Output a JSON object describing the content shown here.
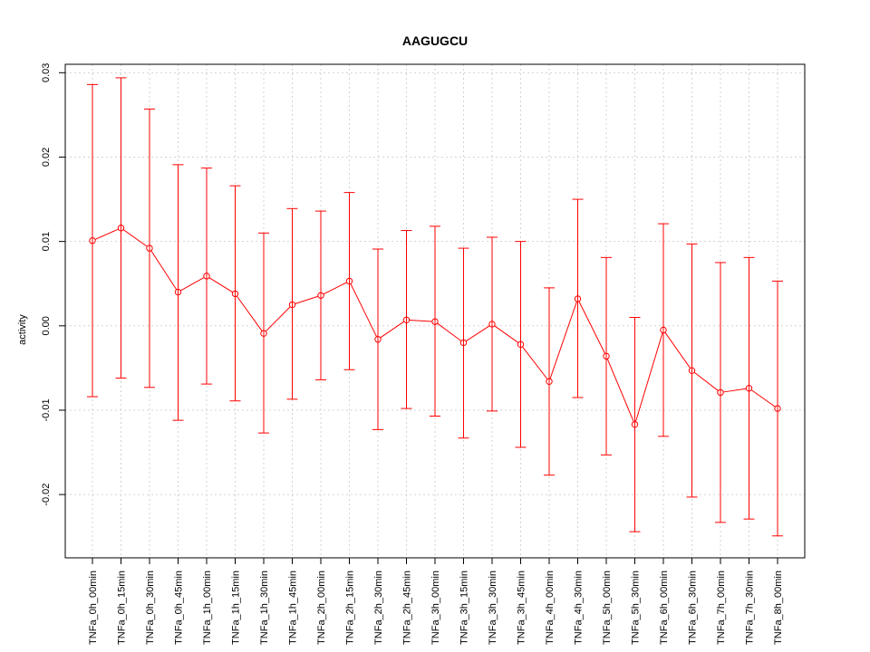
{
  "chart_data": {
    "type": "line",
    "title": "AAGUGCU",
    "xlabel": "",
    "ylabel": "activity",
    "ylim": [
      -0.0275,
      0.031
    ],
    "yticks": [
      -0.02,
      -0.01,
      0.0,
      0.01,
      0.02,
      0.03
    ],
    "ytick_labels": [
      "-0.02",
      "-0.01",
      "0.00",
      "0.01",
      "0.02",
      "0.03"
    ],
    "grid": true,
    "color": "#ff0000",
    "categories": [
      "TNFa_0h_00min",
      "TNFa_0h_15min",
      "TNFa_0h_30min",
      "TNFa_0h_45min",
      "TNFa_1h_00min",
      "TNFa_1h_15min",
      "TNFa_1h_30min",
      "TNFa_1h_45min",
      "TNFa_2h_00min",
      "TNFa_2h_15min",
      "TNFa_2h_30min",
      "TNFa_2h_45min",
      "TNFa_3h_00min",
      "TNFa_3h_15min",
      "TNFa_3h_30min",
      "TNFa_3h_45min",
      "TNFa_4h_00min",
      "TNFa_4h_30min",
      "TNFa_5h_00min",
      "TNFa_5h_30min",
      "TNFa_6h_00min",
      "TNFa_6h_30min",
      "TNFa_7h_00min",
      "TNFa_7h_30min",
      "TNFa_8h_00min"
    ],
    "values": [
      0.0101,
      0.0116,
      0.0092,
      0.004,
      0.0059,
      0.0038,
      -0.0009,
      0.0025,
      0.0036,
      0.0053,
      -0.0016,
      0.0007,
      0.0005,
      -0.002,
      0.0002,
      -0.0022,
      -0.0066,
      0.0032,
      -0.0036,
      -0.0117,
      -0.0005,
      -0.0053,
      -0.0079,
      -0.0074,
      -0.0098
    ],
    "upper": [
      0.0286,
      0.0294,
      0.0257,
      0.0191,
      0.0187,
      0.0166,
      0.011,
      0.0139,
      0.0136,
      0.0158,
      0.0091,
      0.0113,
      0.0118,
      0.0092,
      0.0105,
      0.01,
      0.0045,
      0.015,
      0.0081,
      0.001,
      0.0121,
      0.0097,
      0.0075,
      0.0081,
      0.0053
    ],
    "lower": [
      -0.0084,
      -0.0062,
      -0.0073,
      -0.0112,
      -0.0069,
      -0.0089,
      -0.0127,
      -0.0087,
      -0.0064,
      -0.0052,
      -0.0123,
      -0.0098,
      -0.0107,
      -0.0133,
      -0.0101,
      -0.0144,
      -0.0177,
      -0.0085,
      -0.0153,
      -0.0244,
      -0.0131,
      -0.0203,
      -0.0233,
      -0.0229,
      -0.0249
    ]
  }
}
